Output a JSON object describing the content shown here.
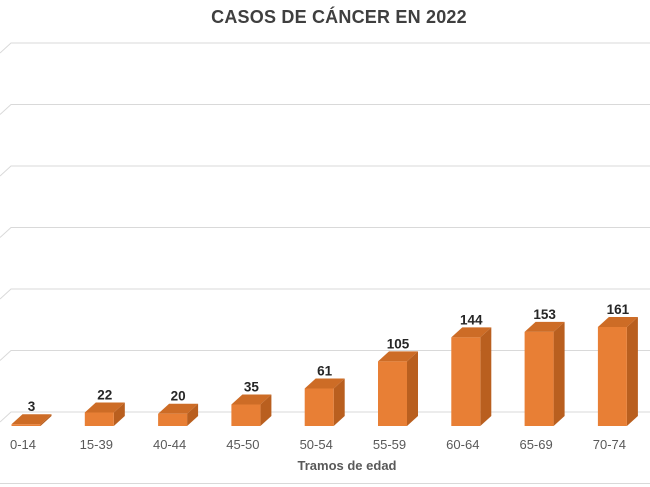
{
  "chart_data": {
    "type": "bar",
    "variant": "3d-column",
    "title": "CASOS DE CÁNCER EN 2022",
    "categories": [
      "0-14",
      "15-39",
      "40-44",
      "45-50",
      "50-54",
      "55-59",
      "60-64",
      "65-69",
      "70-74"
    ],
    "values": [
      3,
      22,
      20,
      35,
      61,
      105,
      144,
      153,
      161
    ],
    "xlabel": "Tramos de edad",
    "ylabel": "",
    "ylim": [
      0,
      600
    ],
    "gridline_step": 100,
    "grid": "horizontal",
    "y_tick_labels_visible": false,
    "legend": "none",
    "data_labels": "above-bars",
    "colors": {
      "bar_front": "#e87f35",
      "bar_top": "#cd6c26",
      "bar_side": "#b95f1f",
      "gridline": "#d9d9d9",
      "title_text": "#3f3f3f",
      "axis_text": "#595959",
      "value_label_text": "#262626",
      "chart_border": "#d9d9d9"
    }
  }
}
